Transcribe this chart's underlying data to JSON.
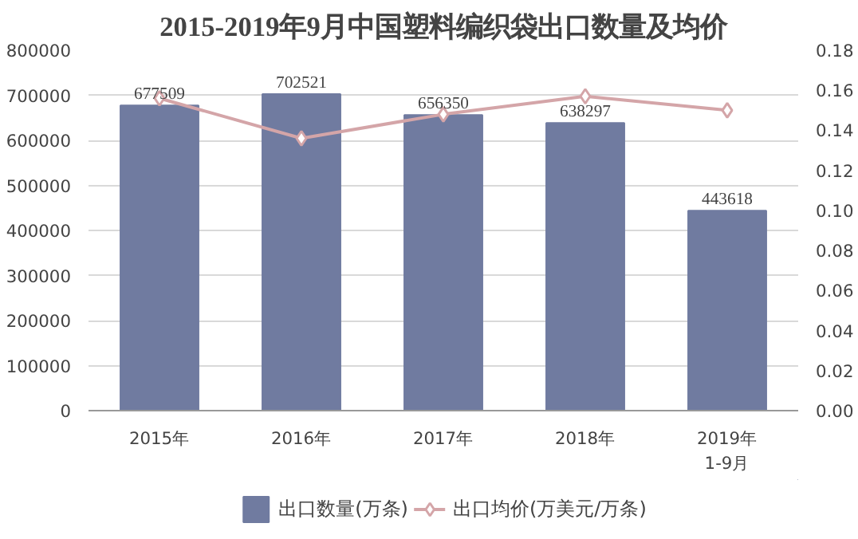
{
  "chart_data": {
    "type": "bar",
    "title": "2015-2019年9月中国塑料编织袋出口数量及均价",
    "categories": [
      "2015年",
      "2016年",
      "2017年",
      "2018年",
      "2019年\n1-9月"
    ],
    "series": [
      {
        "name": "出口数量(万条)",
        "color": "#707ba0",
        "values": [
          677509,
          702521,
          656350,
          638297,
          443618
        ],
        "value_labels": [
          "677509",
          "702521",
          "656350",
          "638297",
          "443618"
        ]
      },
      {
        "name": "出口均价(万美元/万条)",
        "type": "line",
        "axis": "y2",
        "color": "#d4a5a8",
        "marker": "diamond",
        "values": [
          0.156,
          0.136,
          0.148,
          0.157,
          0.15
        ]
      }
    ],
    "ylim": [
      0,
      800000
    ],
    "yticks": [
      0,
      100000,
      200000,
      300000,
      400000,
      500000,
      600000,
      700000,
      800000
    ],
    "y2lim": [
      0,
      0.18
    ],
    "y2ticks": [
      {
        "value": 0,
        "label": "0.00"
      },
      {
        "value": 0.02,
        "label": "0.02"
      },
      {
        "value": 0.04,
        "label": "0.04"
      },
      {
        "value": 0.06,
        "label": "0.06"
      },
      {
        "value": 0.08,
        "label": "0.08"
      },
      {
        "value": 0.1,
        "label": "0.10"
      },
      {
        "value": 0.12,
        "label": "0.12"
      },
      {
        "value": 0.14,
        "label": "0.14"
      },
      {
        "value": 0.16,
        "label": "0.16"
      },
      {
        "value": 0.18,
        "label": "0.18"
      }
    ],
    "grid": "y",
    "legend": "bottom"
  }
}
